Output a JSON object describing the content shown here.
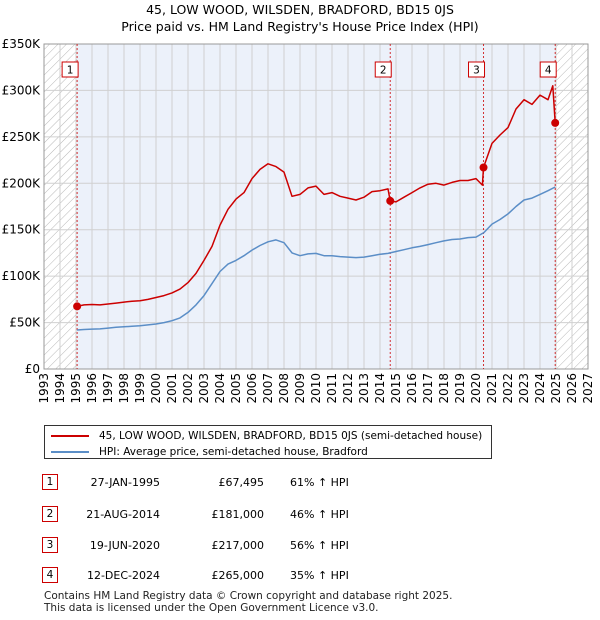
{
  "title_lines": [
    "45, LOW WOOD, WILSDEN, BRADFORD, BD15 0JS",
    "Price paid vs. HM Land Registry's House Price Index (HPI)"
  ],
  "colors": {
    "property": "#cc0000",
    "hpi": "#5b8ec7",
    "grid": "#d0d0d0",
    "hatch": "#b0b0b0",
    "shade": "#dce6f5"
  },
  "chart_data": {
    "type": "line",
    "title": "45, LOW WOOD, WILSDEN, BRADFORD, BD15 0JS - Price paid vs. HM Land Registry's House Price Index (HPI)",
    "xlabel": "",
    "ylabel": "",
    "xlim": [
      1993,
      2027
    ],
    "ylim": [
      0,
      350000
    ],
    "x_ticks": [
      1993,
      1994,
      1995,
      1996,
      1997,
      1998,
      1999,
      2000,
      2001,
      2002,
      2003,
      2004,
      2005,
      2006,
      2007,
      2008,
      2009,
      2010,
      2011,
      2012,
      2013,
      2014,
      2015,
      2016,
      2017,
      2018,
      2019,
      2020,
      2021,
      2022,
      2023,
      2024,
      2025,
      2026,
      2027
    ],
    "y_ticks": [
      {
        "value": 0,
        "label": "£0"
      },
      {
        "value": 50000,
        "label": "£50K"
      },
      {
        "value": 100000,
        "label": "£100K"
      },
      {
        "value": 150000,
        "label": "£150K"
      },
      {
        "value": 200000,
        "label": "£200K"
      },
      {
        "value": 250000,
        "label": "£250K"
      },
      {
        "value": 300000,
        "label": "£300K"
      },
      {
        "value": 350000,
        "label": "£350K"
      }
    ],
    "grid": true,
    "hatched_ranges": [
      [
        1993,
        1995.07
      ],
      [
        2025.0,
        2027
      ]
    ],
    "shaded_range": [
      1995.07,
      2025.0
    ],
    "series": [
      {
        "name": "45, LOW WOOD, WILSDEN, BRADFORD, BD15 0JS (semi-detached house)",
        "color": "#cc0000",
        "x": [
          1995.07,
          1995.5,
          1996,
          1996.5,
          1997,
          1997.5,
          1998,
          1998.5,
          1999,
          1999.5,
          2000,
          2000.5,
          2001,
          2001.5,
          2002,
          2002.5,
          2003,
          2003.5,
          2004,
          2004.5,
          2005,
          2005.5,
          2006,
          2006.5,
          2007,
          2007.5,
          2008,
          2008.5,
          2009,
          2009.5,
          2010,
          2010.5,
          2011,
          2011.5,
          2012,
          2012.5,
          2013,
          2013.5,
          2014,
          2014.5,
          2014.64,
          2015,
          2015.5,
          2016,
          2016.5,
          2017,
          2017.5,
          2018,
          2018.5,
          2019,
          2019.5,
          2020,
          2020.4,
          2020.47,
          2021,
          2021.5,
          2022,
          2022.5,
          2023,
          2023.5,
          2024,
          2024.5,
          2024.8,
          2024.95
        ],
        "values": [
          67495,
          69000,
          69500,
          69000,
          70000,
          71000,
          72000,
          73000,
          73500,
          75000,
          77000,
          79000,
          82000,
          86000,
          93000,
          103000,
          117000,
          132000,
          155000,
          172000,
          183000,
          190000,
          205000,
          215000,
          221000,
          218000,
          212000,
          186000,
          188000,
          195000,
          197000,
          188000,
          190000,
          186000,
          184000,
          182000,
          185000,
          191000,
          192000,
          194000,
          181000,
          180000,
          185000,
          190000,
          195000,
          199000,
          200000,
          198000,
          201000,
          203000,
          203000,
          205000,
          198000,
          217000,
          243000,
          252000,
          260000,
          280000,
          290000,
          285000,
          295000,
          290000,
          305000,
          265000
        ]
      },
      {
        "name": "HPI: Average price, semi-detached house, Bradford",
        "color": "#5b8ec7",
        "x": [
          1995.07,
          1995.5,
          1996,
          1996.5,
          1997,
          1997.5,
          1998,
          1998.5,
          1999,
          1999.5,
          2000,
          2000.5,
          2001,
          2001.5,
          2002,
          2002.5,
          2003,
          2003.5,
          2004,
          2004.5,
          2005,
          2005.5,
          2006,
          2006.5,
          2007,
          2007.5,
          2008,
          2008.5,
          2009,
          2009.5,
          2010,
          2010.5,
          2011,
          2011.5,
          2012,
          2012.5,
          2013,
          2013.5,
          2014,
          2014.5,
          2015,
          2015.5,
          2016,
          2016.5,
          2017,
          2017.5,
          2018,
          2018.5,
          2019,
          2019.5,
          2020,
          2020.5,
          2021,
          2021.5,
          2022,
          2022.5,
          2023,
          2023.5,
          2024,
          2024.5,
          2024.95
        ],
        "values": [
          42000,
          42500,
          43000,
          43200,
          44000,
          45000,
          45500,
          46000,
          46500,
          47500,
          48500,
          50000,
          52000,
          55000,
          61000,
          69000,
          79000,
          92000,
          105000,
          113000,
          117000,
          122000,
          128000,
          133000,
          137000,
          139000,
          136000,
          125000,
          122000,
          124000,
          124500,
          122000,
          122000,
          121000,
          120500,
          120000,
          120500,
          122000,
          123500,
          124500,
          126500,
          128500,
          130500,
          132000,
          134000,
          136000,
          138000,
          139500,
          140000,
          141500,
          142000,
          147000,
          156000,
          161000,
          167000,
          175000,
          182000,
          184000,
          188000,
          192000,
          196000
        ]
      }
    ],
    "sales": [
      {
        "id": "1",
        "x": 1995.07,
        "value": 67495
      },
      {
        "id": "2",
        "x": 2014.64,
        "value": 181000
      },
      {
        "id": "3",
        "x": 2020.47,
        "value": 217000
      },
      {
        "id": "4",
        "x": 2024.95,
        "value": 265000
      }
    ]
  },
  "legend": {
    "property_label": "45, LOW WOOD, WILSDEN, BRADFORD, BD15 0JS (semi-detached house)",
    "hpi_label": "HPI: Average price, semi-detached house, Bradford"
  },
  "sales_table": [
    {
      "id": "1",
      "date": "27-JAN-1995",
      "price": "£67,495",
      "hpi": "61% ↑ HPI"
    },
    {
      "id": "2",
      "date": "21-AUG-2014",
      "price": "£181,000",
      "hpi": "46% ↑ HPI"
    },
    {
      "id": "3",
      "date": "19-JUN-2020",
      "price": "£217,000",
      "hpi": "56% ↑ HPI"
    },
    {
      "id": "4",
      "date": "12-DEC-2024",
      "price": "£265,000",
      "hpi": "35% ↑ HPI"
    }
  ],
  "footer": {
    "line1": "Contains HM Land Registry data © Crown copyright and database right 2025.",
    "line2": "This data is licensed under the Open Government Licence v3.0."
  }
}
